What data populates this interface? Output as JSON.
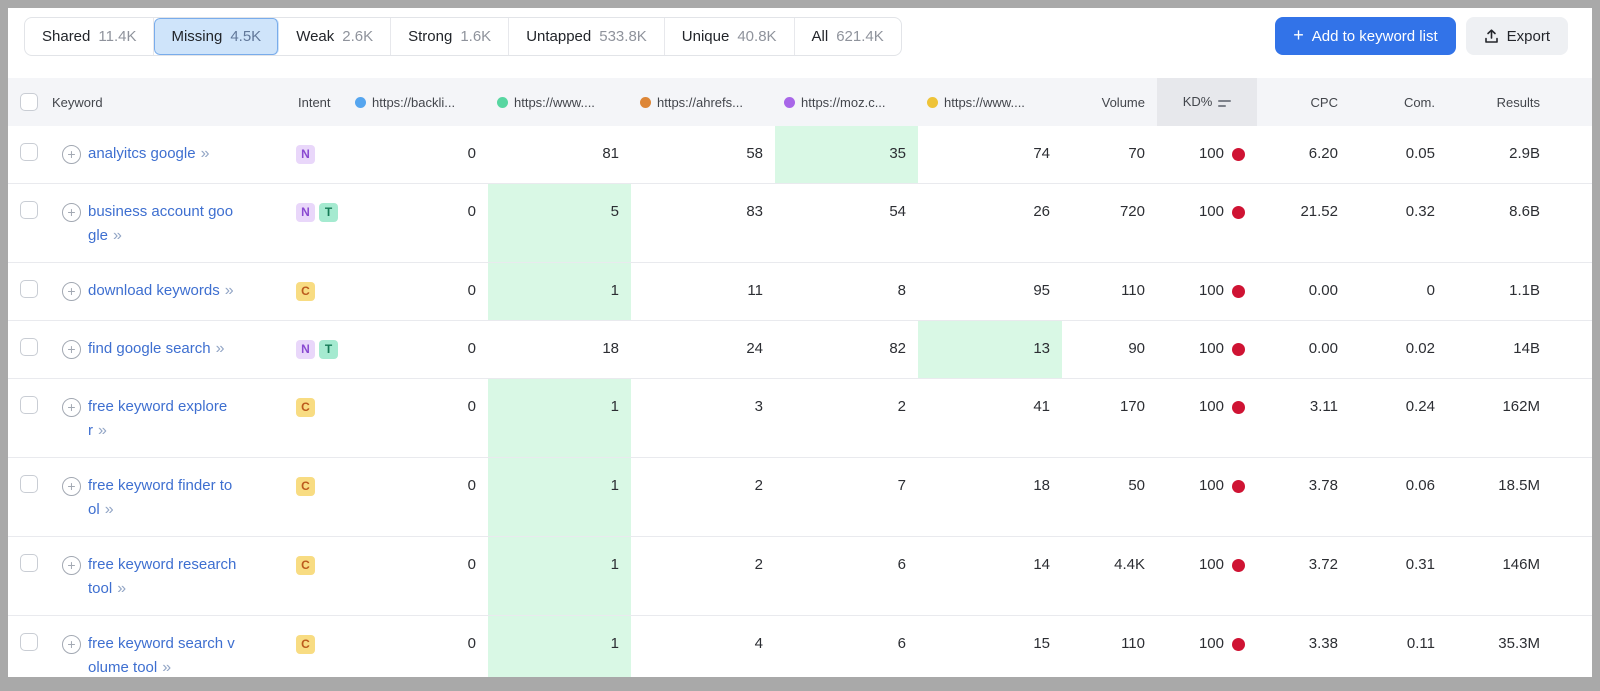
{
  "tabs": [
    {
      "label": "Shared",
      "count": "11.4K",
      "selected": false
    },
    {
      "label": "Missing",
      "count": "4.5K",
      "selected": true
    },
    {
      "label": "Weak",
      "count": "2.6K",
      "selected": false
    },
    {
      "label": "Strong",
      "count": "1.6K",
      "selected": false
    },
    {
      "label": "Untapped",
      "count": "533.8K",
      "selected": false
    },
    {
      "label": "Unique",
      "count": "40.8K",
      "selected": false
    },
    {
      "label": "All",
      "count": "621.4K",
      "selected": false
    }
  ],
  "toolbar": {
    "add_to_list_label": "Add to keyword list",
    "export_label": "Export"
  },
  "table": {
    "columns": {
      "keyword": "Keyword",
      "intent": "Intent",
      "volume": "Volume",
      "kd": "KD%",
      "cpc": "CPC",
      "com": "Com.",
      "results": "Results"
    },
    "domains": [
      {
        "label": "https://backli...",
        "color": "#55a5ef"
      },
      {
        "label": "https://www....",
        "color": "#57d6a1"
      },
      {
        "label": "https://ahrefs...",
        "color": "#dd8637"
      },
      {
        "label": "https://moz.c...",
        "color": "#a866e8"
      },
      {
        "label": "https://www....",
        "color": "#eec338"
      }
    ],
    "rows": [
      {
        "keyword": "analyitcs google",
        "intents": [
          "N"
        ],
        "positions": [
          "0",
          "81",
          "58",
          "35",
          "74"
        ],
        "highlight_col": 3,
        "volume": "70",
        "kd": "100",
        "cpc": "6.20",
        "com": "0.05",
        "results": "2.9B"
      },
      {
        "keyword": "business account google",
        "intents": [
          "N",
          "T"
        ],
        "positions": [
          "0",
          "5",
          "83",
          "54",
          "26"
        ],
        "highlight_col": 1,
        "volume": "720",
        "kd": "100",
        "cpc": "21.52",
        "com": "0.32",
        "results": "8.6B"
      },
      {
        "keyword": "download keywords",
        "intents": [
          "C"
        ],
        "positions": [
          "0",
          "1",
          "11",
          "8",
          "95"
        ],
        "highlight_col": 1,
        "volume": "110",
        "kd": "100",
        "cpc": "0.00",
        "com": "0",
        "results": "1.1B"
      },
      {
        "keyword": "find google search",
        "intents": [
          "N",
          "T"
        ],
        "positions": [
          "0",
          "18",
          "24",
          "82",
          "13"
        ],
        "highlight_col": 4,
        "volume": "90",
        "kd": "100",
        "cpc": "0.00",
        "com": "0.02",
        "results": "14B"
      },
      {
        "keyword": "free keyword explorer",
        "intents": [
          "C"
        ],
        "positions": [
          "0",
          "1",
          "3",
          "2",
          "41"
        ],
        "highlight_col": 1,
        "volume": "170",
        "kd": "100",
        "cpc": "3.11",
        "com": "0.24",
        "results": "162M"
      },
      {
        "keyword": "free keyword finder tool",
        "intents": [
          "C"
        ],
        "positions": [
          "0",
          "1",
          "2",
          "7",
          "18"
        ],
        "highlight_col": 1,
        "volume": "50",
        "kd": "100",
        "cpc": "3.78",
        "com": "0.06",
        "results": "18.5M"
      },
      {
        "keyword": "free keyword research tool",
        "intents": [
          "C"
        ],
        "positions": [
          "0",
          "1",
          "2",
          "6",
          "14"
        ],
        "highlight_col": 1,
        "volume": "4.4K",
        "kd": "100",
        "cpc": "3.72",
        "com": "0.31",
        "results": "146M"
      },
      {
        "keyword": "free keyword search volume tool",
        "intents": [
          "C"
        ],
        "positions": [
          "0",
          "1",
          "4",
          "6",
          "15"
        ],
        "highlight_col": 1,
        "volume": "110",
        "kd": "100",
        "cpc": "3.38",
        "com": "0.11",
        "results": "35.3M"
      }
    ]
  },
  "intent_types": {
    "N": {
      "bg": "#e9d7fa",
      "fg": "#8a4ad1"
    },
    "T": {
      "bg": "#a5ead0",
      "fg": "#157a56"
    },
    "C": {
      "bg": "#f8dc82",
      "fg": "#bb5a1d"
    }
  },
  "colors": {
    "accent_blue": "#3273e8",
    "selected_tab_bg": "#cfe4fa",
    "link_blue": "#3e6fd0",
    "highlight_green": "#d9f8e5",
    "kd_dot_red": "#cf1333",
    "header_bg": "#f4f5f8",
    "kd_header_bg": "#e7e8ec"
  }
}
